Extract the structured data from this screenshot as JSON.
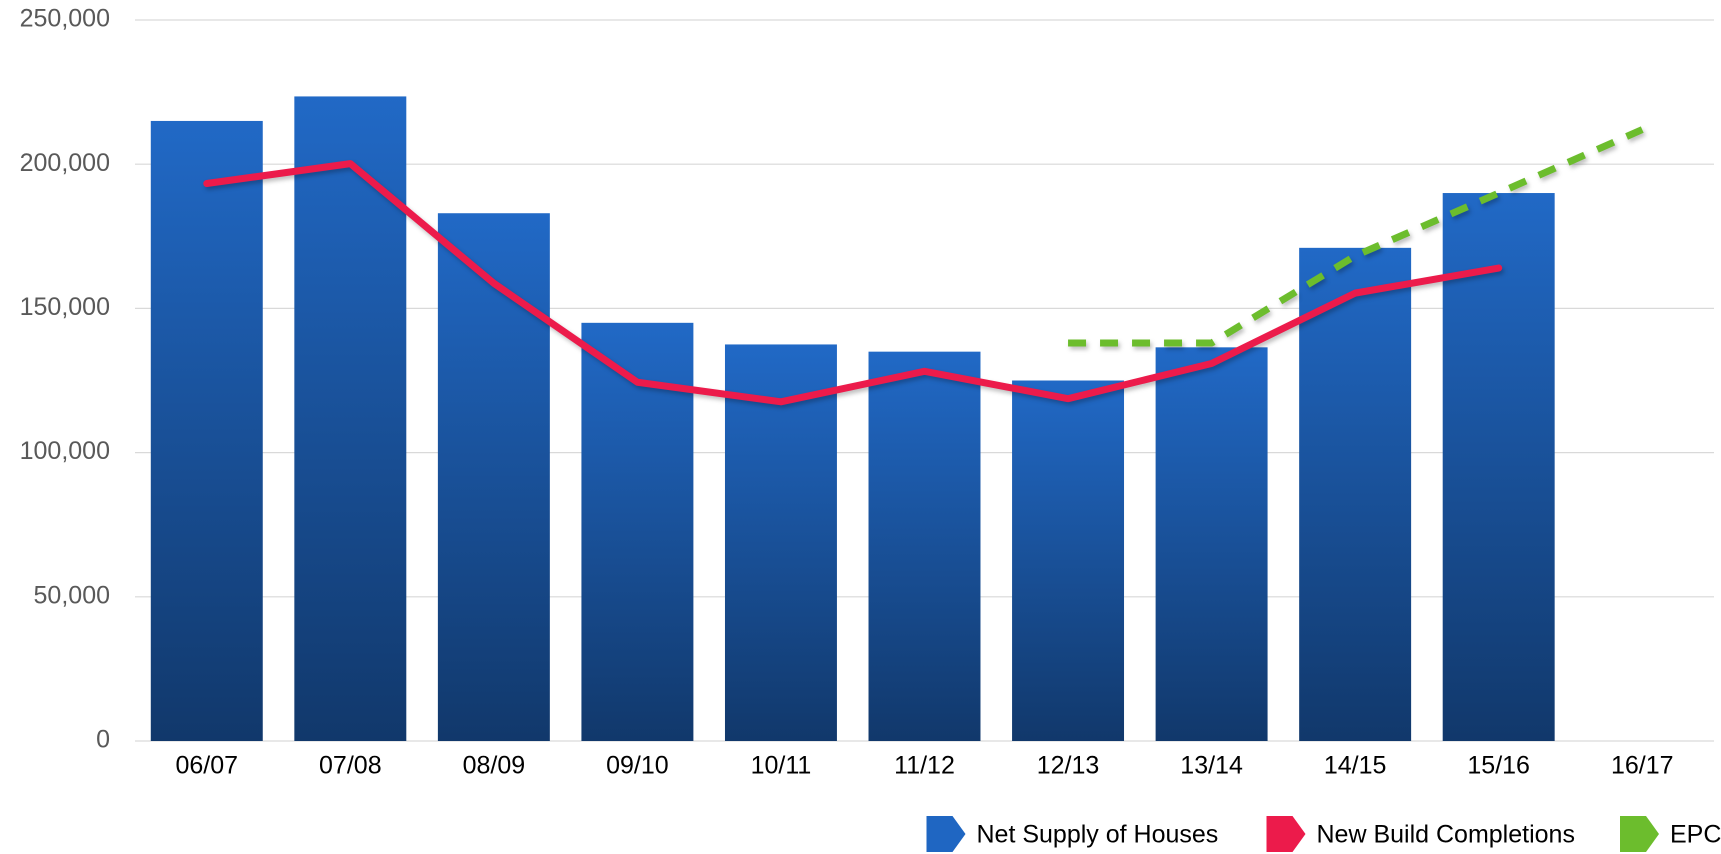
{
  "chart_data": {
    "type": "bar",
    "categories": [
      "06/07",
      "07/08",
      "08/09",
      "09/10",
      "10/11",
      "11/12",
      "12/13",
      "13/14",
      "14/15",
      "15/16",
      "16/17"
    ],
    "series": [
      {
        "name": "Net Supply of Houses",
        "type": "bar",
        "color": "#1f66c2",
        "values": [
          215000,
          223500,
          183000,
          145000,
          137500,
          135000,
          125000,
          136500,
          171000,
          190000,
          null
        ]
      },
      {
        "name": "New Build Completions",
        "type": "line",
        "color": "#ec1b4b",
        "values": [
          193300,
          200200,
          158700,
          124400,
          117600,
          128200,
          118700,
          130900,
          155300,
          164000,
          null
        ]
      },
      {
        "name": "EPCs",
        "type": "line",
        "dashed": true,
        "color": "#6cbd2d",
        "values": [
          null,
          null,
          null,
          null,
          null,
          null,
          138000,
          138000,
          168200,
          190000,
          212000
        ]
      }
    ],
    "ylim": [
      0,
      250000
    ],
    "yticks": [
      0,
      {
        "value": 50000,
        "label": "50,000"
      },
      {
        "value": 100000,
        "label": "100,000"
      },
      {
        "value": 150000,
        "label": "150,000"
      },
      {
        "value": 200000,
        "label": "200,000"
      },
      {
        "value": 250000,
        "label": "250,000"
      }
    ],
    "grid": true,
    "legend": "bottom-right"
  }
}
